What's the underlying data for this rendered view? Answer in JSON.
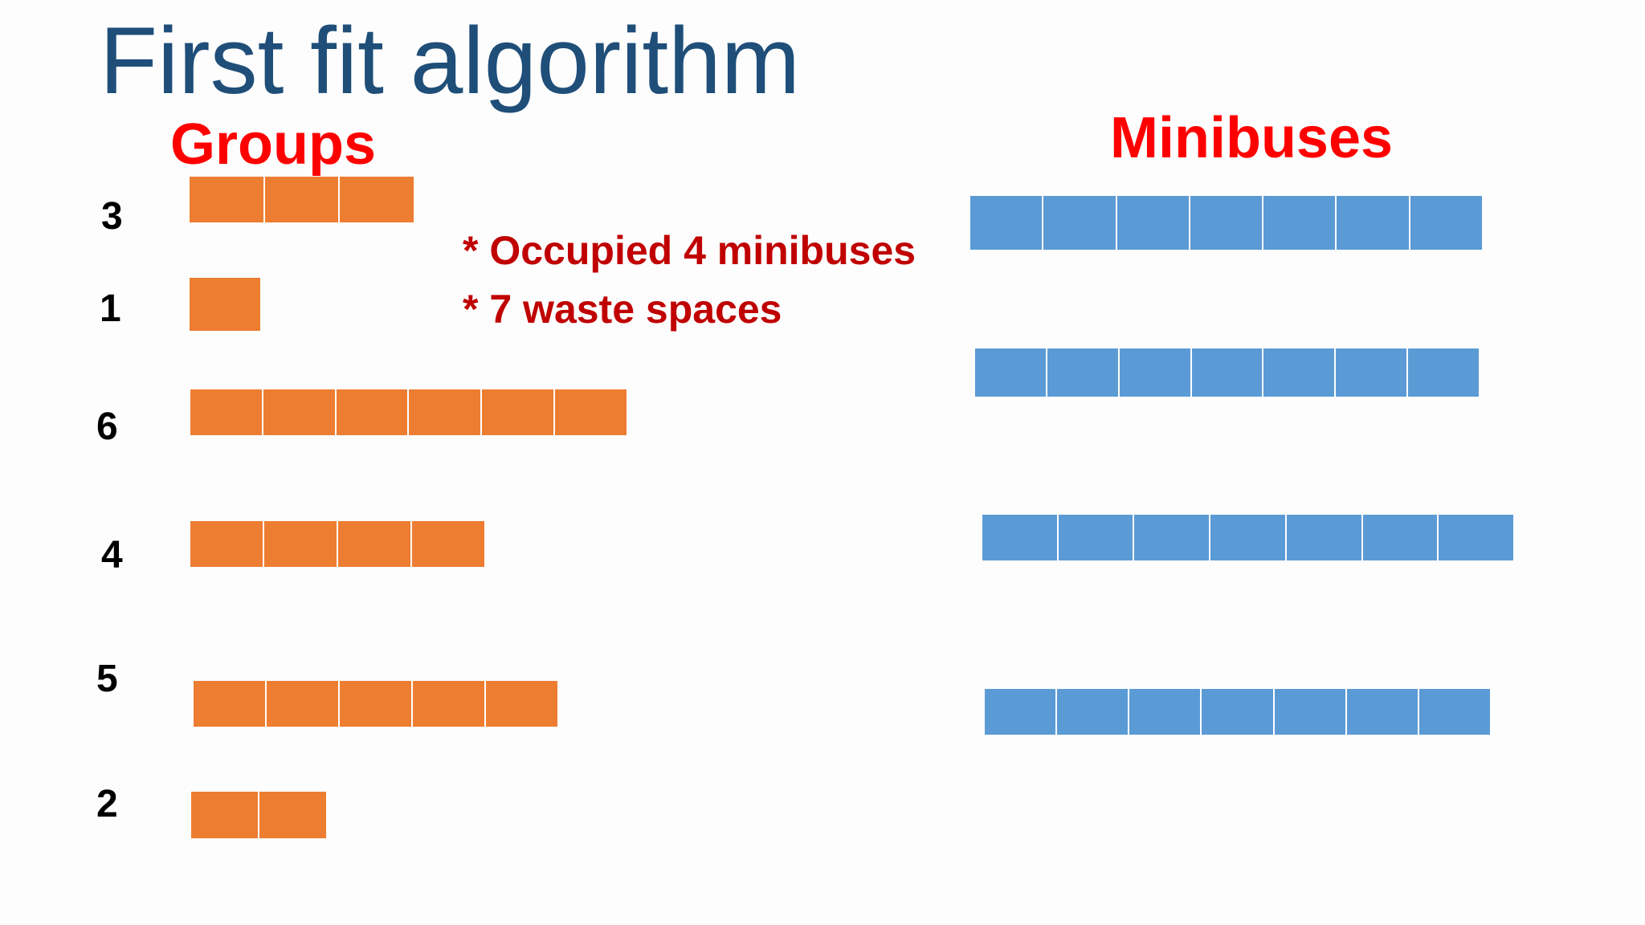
{
  "title": "First fit algorithm",
  "groups_heading": "Groups",
  "minibuses_heading": "Minibuses",
  "notes": [
    "* Occupied 4 minibuses",
    "* 7 waste spaces"
  ],
  "colors": {
    "title": "#1f4e79",
    "heading": "#ff0000",
    "note": "#c00000",
    "group_block": "#ed7d31",
    "minibus_seat": "#5b9bd5"
  },
  "groups": [
    {
      "label": "3",
      "size": 3
    },
    {
      "label": "1",
      "size": 1
    },
    {
      "label": "6",
      "size": 6
    },
    {
      "label": "4",
      "size": 4
    },
    {
      "label": "5",
      "size": 5
    },
    {
      "label": "2",
      "size": 2
    }
  ],
  "minibuses": [
    {
      "seats": 7
    },
    {
      "seats": 7
    },
    {
      "seats": 7
    },
    {
      "seats": 7
    }
  ]
}
